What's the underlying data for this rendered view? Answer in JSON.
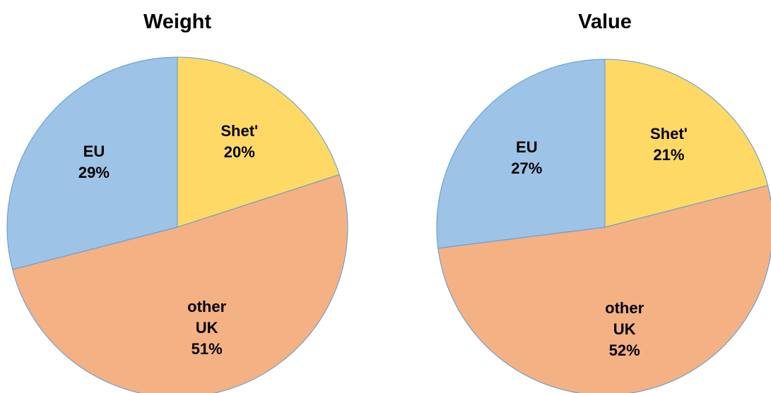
{
  "chart_data": [
    {
      "type": "pie",
      "title": "Weight",
      "categories": [
        "Shet'",
        "other UK",
        "EU"
      ],
      "values": [
        20,
        51,
        29
      ],
      "value_labels": [
        "20%",
        "51%",
        "29%"
      ],
      "colors": [
        "#FFD966",
        "#F4B183",
        "#9DC3E6"
      ]
    },
    {
      "type": "pie",
      "title": "Value",
      "categories": [
        "Shet'",
        "other UK",
        "EU"
      ],
      "values": [
        21,
        52,
        27
      ],
      "value_labels": [
        "21%",
        "52%",
        "27%"
      ],
      "colors": [
        "#FFD966",
        "#F4B183",
        "#9DC3E6"
      ]
    }
  ]
}
